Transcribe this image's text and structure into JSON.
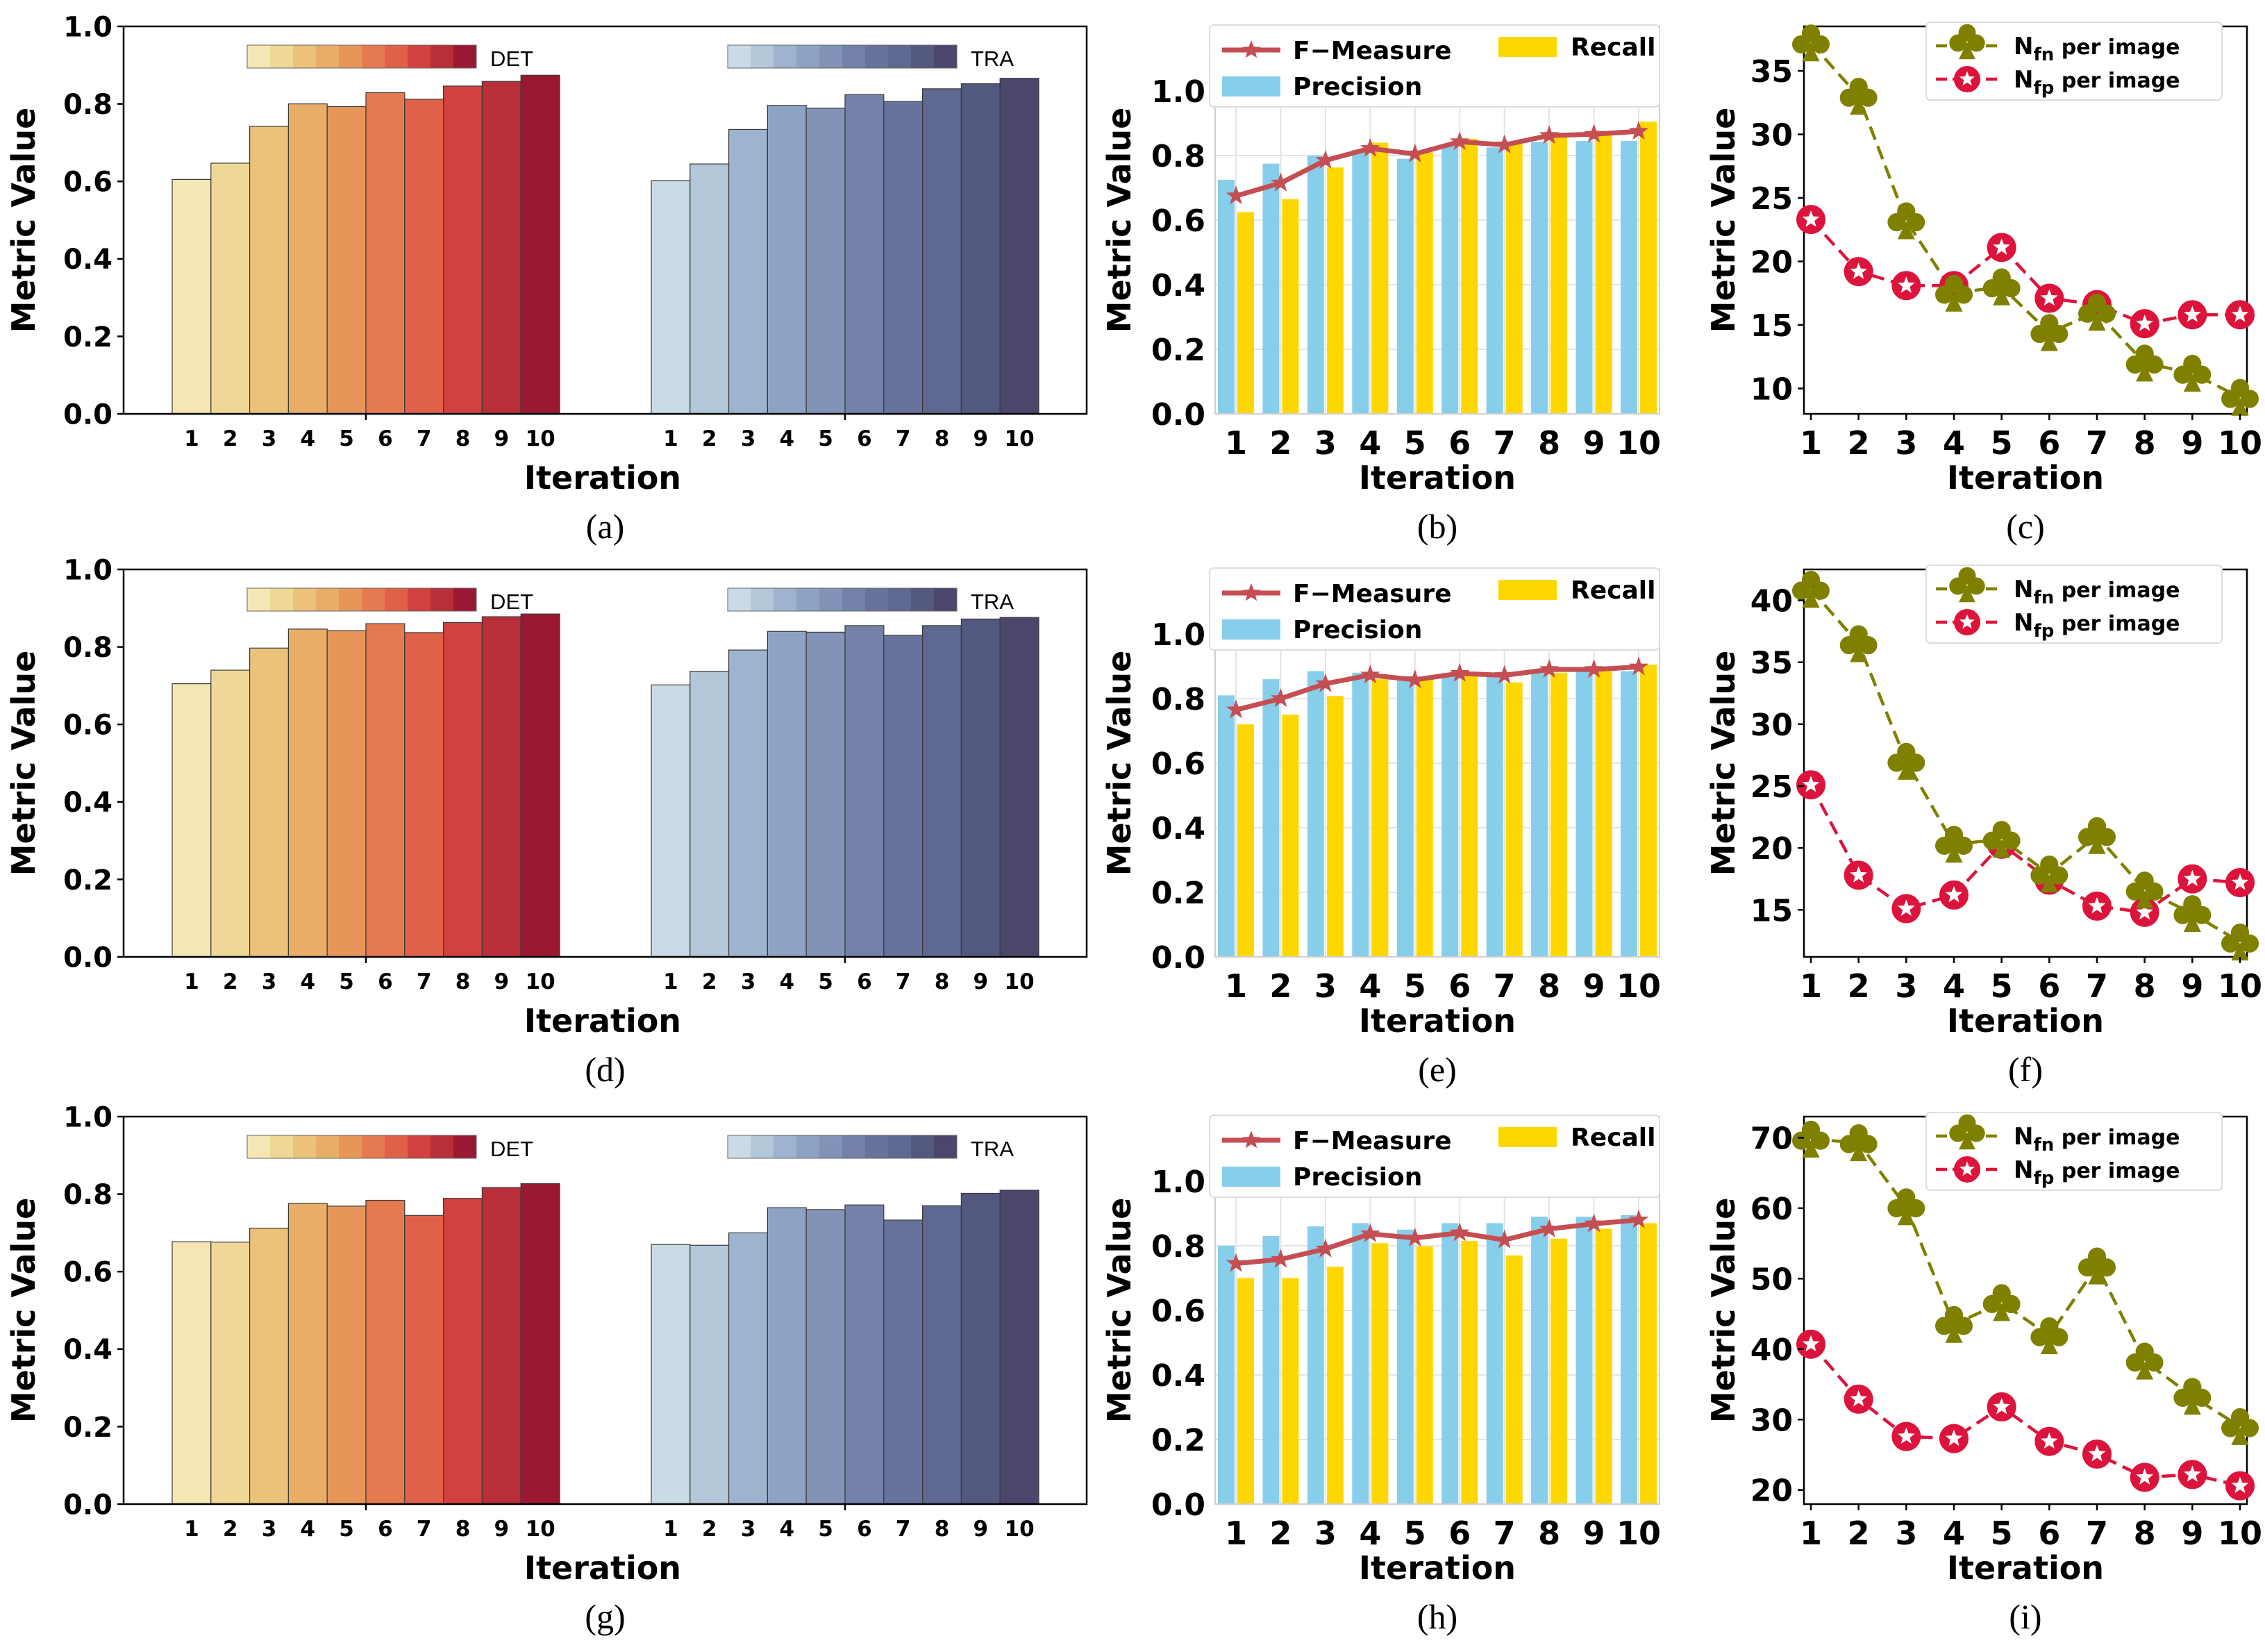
{
  "figure": {
    "common": {
      "xlabel": "Iteration",
      "ylabel": "Metric Value",
      "iterations": [
        "1",
        "2",
        "3",
        "4",
        "5",
        "6",
        "7",
        "8",
        "9",
        "10"
      ]
    },
    "colors": {
      "det": [
        "#f5e7b4",
        "#efd795",
        "#ebc27a",
        "#e8ae68",
        "#e7965a",
        "#e57a50",
        "#e0614a",
        "#d0413f",
        "#b82e39",
        "#991832"
      ],
      "tra": [
        "#cadbe6",
        "#b4c7d9",
        "#9eb3cd",
        "#8ea3c3",
        "#8393b7",
        "#7482aa",
        "#68739c",
        "#5f6890",
        "#53587e",
        "#4a466c"
      ],
      "f_measure": "#c44e52",
      "precision": "#87ceeb",
      "recall": "#ffd700",
      "nfn": "#808000",
      "nfp": "#dc143c"
    }
  },
  "chart_data": [
    {
      "panel": "a",
      "type": "bar",
      "caption": "(a)",
      "xlabel": "Iteration",
      "ylabel": "Metric Value",
      "ylim": [
        0,
        1.0
      ],
      "yticks": [
        "0.0",
        "0.2",
        "0.4",
        "0.6",
        "0.8",
        "1.0"
      ],
      "categories": [
        "1",
        "2",
        "3",
        "4",
        "5",
        "6",
        "7",
        "8",
        "9",
        "10"
      ],
      "series": [
        {
          "name": "DET",
          "values": [
            0.605,
            0.647,
            0.742,
            0.8,
            0.793,
            0.829,
            0.812,
            0.846,
            0.858,
            0.874
          ]
        },
        {
          "name": "TRA",
          "values": [
            0.602,
            0.645,
            0.734,
            0.796,
            0.789,
            0.824,
            0.806,
            0.839,
            0.852,
            0.866
          ]
        }
      ]
    },
    {
      "panel": "b",
      "type": "bar+line",
      "caption": "(b)",
      "xlabel": "Iteration",
      "ylabel": "Metric Value",
      "ylim": [
        0,
        1.2
      ],
      "yticks": [
        "0.0",
        "0.2",
        "0.4",
        "0.6",
        "0.8",
        "1.0"
      ],
      "categories": [
        "1",
        "2",
        "3",
        "4",
        "5",
        "6",
        "7",
        "8",
        "9",
        "10"
      ],
      "series": [
        {
          "name": "F−Measure",
          "kind": "line",
          "values": [
            0.675,
            0.715,
            0.785,
            0.822,
            0.805,
            0.843,
            0.833,
            0.862,
            0.866,
            0.875
          ]
        },
        {
          "name": "Precision",
          "kind": "bar",
          "values": [
            0.725,
            0.775,
            0.8,
            0.818,
            0.79,
            0.835,
            0.825,
            0.842,
            0.845,
            0.845
          ]
        },
        {
          "name": "Recall",
          "kind": "bar",
          "values": [
            0.625,
            0.665,
            0.763,
            0.84,
            0.81,
            0.852,
            0.84,
            0.867,
            0.875,
            0.905
          ]
        }
      ]
    },
    {
      "panel": "c",
      "type": "line",
      "caption": "(c)",
      "xlabel": "Iteration",
      "ylabel": "Metric Value",
      "ylim": [
        8,
        38.5
      ],
      "yticks": [
        "10",
        "15",
        "20",
        "25",
        "30",
        "35"
      ],
      "categories": [
        "1",
        "2",
        "3",
        "4",
        "5",
        "6",
        "7",
        "8",
        "9",
        "10"
      ],
      "series": [
        {
          "name": "N_fn per image",
          "base": "N",
          "sub": "fn",
          "suffix": " per image",
          "values": [
            37.2,
            33.0,
            23.2,
            17.5,
            18.0,
            14.4,
            16.0,
            12.0,
            11.2,
            9.3
          ]
        },
        {
          "name": "N_fp per image",
          "base": "N",
          "sub": "fp",
          "suffix": " per image",
          "values": [
            23.3,
            19.2,
            18.1,
            18.1,
            21.1,
            17.1,
            16.6,
            15.1,
            15.8,
            15.8
          ]
        }
      ]
    },
    {
      "panel": "d",
      "type": "bar",
      "caption": "(d)",
      "xlabel": "Iteration",
      "ylabel": "Metric Value",
      "ylim": [
        0,
        1.0
      ],
      "yticks": [
        "0.0",
        "0.2",
        "0.4",
        "0.6",
        "0.8",
        "1.0"
      ],
      "categories": [
        "1",
        "2",
        "3",
        "4",
        "5",
        "6",
        "7",
        "8",
        "9",
        "10"
      ],
      "series": [
        {
          "name": "DET",
          "values": [
            0.705,
            0.74,
            0.797,
            0.846,
            0.842,
            0.86,
            0.837,
            0.863,
            0.878,
            0.885
          ]
        },
        {
          "name": "TRA",
          "values": [
            0.702,
            0.737,
            0.792,
            0.84,
            0.838,
            0.855,
            0.83,
            0.855,
            0.872,
            0.876
          ]
        }
      ]
    },
    {
      "panel": "e",
      "type": "bar+line",
      "caption": "(e)",
      "xlabel": "Iteration",
      "ylabel": "Metric Value",
      "ylim": [
        0,
        1.2
      ],
      "yticks": [
        "0.0",
        "0.2",
        "0.4",
        "0.6",
        "0.8",
        "1.0"
      ],
      "categories": [
        "1",
        "2",
        "3",
        "4",
        "5",
        "6",
        "7",
        "8",
        "9",
        "10"
      ],
      "series": [
        {
          "name": "F−Measure",
          "kind": "line",
          "values": [
            0.765,
            0.8,
            0.846,
            0.873,
            0.858,
            0.878,
            0.872,
            0.89,
            0.89,
            0.898
          ]
        },
        {
          "name": "Precision",
          "kind": "bar",
          "values": [
            0.81,
            0.86,
            0.885,
            0.88,
            0.87,
            0.88,
            0.88,
            0.89,
            0.89,
            0.885
          ]
        },
        {
          "name": "Recall",
          "kind": "bar",
          "values": [
            0.72,
            0.75,
            0.808,
            0.86,
            0.86,
            0.87,
            0.85,
            0.88,
            0.89,
            0.905
          ]
        }
      ]
    },
    {
      "panel": "f",
      "type": "line",
      "caption": "(f)",
      "xlabel": "Iteration",
      "ylabel": "Metric Value",
      "ylim": [
        11.2,
        42.5
      ],
      "yticks": [
        "15",
        "20",
        "25",
        "30",
        "35",
        "40"
      ],
      "categories": [
        "1",
        "2",
        "3",
        "4",
        "5",
        "6",
        "7",
        "8",
        "9",
        "10"
      ],
      "series": [
        {
          "name": "N_fn per image",
          "base": "N",
          "sub": "fn",
          "suffix": " per image",
          "values": [
            40.9,
            36.5,
            27.0,
            20.3,
            20.7,
            17.9,
            21.0,
            16.6,
            14.7,
            12.4
          ]
        },
        {
          "name": "N_fp per image",
          "base": "N",
          "sub": "fp",
          "suffix": " per image",
          "values": [
            25.1,
            17.8,
            15.1,
            16.2,
            20.3,
            17.4,
            15.3,
            14.8,
            17.5,
            17.2
          ]
        }
      ]
    },
    {
      "panel": "g",
      "type": "bar",
      "caption": "(g)",
      "xlabel": "Iteration",
      "ylabel": "Metric Value",
      "ylim": [
        0,
        1.0
      ],
      "yticks": [
        "0.0",
        "0.2",
        "0.4",
        "0.6",
        "0.8",
        "1.0"
      ],
      "categories": [
        "1",
        "2",
        "3",
        "4",
        "5",
        "6",
        "7",
        "8",
        "9",
        "10"
      ],
      "series": [
        {
          "name": "DET",
          "values": [
            0.677,
            0.676,
            0.712,
            0.776,
            0.769,
            0.784,
            0.745,
            0.789,
            0.817,
            0.827
          ]
        },
        {
          "name": "TRA",
          "values": [
            0.67,
            0.668,
            0.7,
            0.765,
            0.76,
            0.772,
            0.733,
            0.77,
            0.802,
            0.81
          ]
        }
      ]
    },
    {
      "panel": "h",
      "type": "bar+line",
      "caption": "(h)",
      "xlabel": "Iteration",
      "ylabel": "Metric Value",
      "ylim": [
        0,
        1.2
      ],
      "yticks": [
        "0.0",
        "0.2",
        "0.4",
        "0.6",
        "0.8",
        "1.0"
      ],
      "categories": [
        "1",
        "2",
        "3",
        "4",
        "5",
        "6",
        "7",
        "8",
        "9",
        "10"
      ],
      "series": [
        {
          "name": "F−Measure",
          "kind": "line",
          "values": [
            0.745,
            0.758,
            0.79,
            0.837,
            0.824,
            0.84,
            0.818,
            0.852,
            0.868,
            0.88
          ]
        },
        {
          "name": "Precision",
          "kind": "bar",
          "values": [
            0.8,
            0.83,
            0.86,
            0.87,
            0.85,
            0.87,
            0.87,
            0.89,
            0.89,
            0.895
          ]
        },
        {
          "name": "Recall",
          "kind": "bar",
          "values": [
            0.7,
            0.7,
            0.735,
            0.808,
            0.798,
            0.815,
            0.77,
            0.822,
            0.853,
            0.87
          ]
        }
      ]
    },
    {
      "panel": "i",
      "type": "line",
      "caption": "(i)",
      "xlabel": "Iteration",
      "ylabel": "Metric Value",
      "ylim": [
        18,
        73
      ],
      "yticks": [
        "20",
        "30",
        "40",
        "50",
        "60",
        "70"
      ],
      "categories": [
        "1",
        "2",
        "3",
        "4",
        "5",
        "6",
        "7",
        "8",
        "9",
        "10"
      ],
      "series": [
        {
          "name": "N_fn per image",
          "base": "N",
          "sub": "fn",
          "suffix": " per image",
          "values": [
            69.8,
            69.3,
            60.2,
            43.5,
            46.6,
            41.9,
            51.8,
            38.3,
            33.3,
            29.0
          ]
        },
        {
          "name": "N_fp per image",
          "base": "N",
          "sub": "fp",
          "suffix": " per image",
          "values": [
            40.7,
            32.9,
            27.6,
            27.3,
            31.8,
            26.9,
            25.1,
            21.8,
            22.2,
            20.6
          ]
        }
      ]
    }
  ]
}
